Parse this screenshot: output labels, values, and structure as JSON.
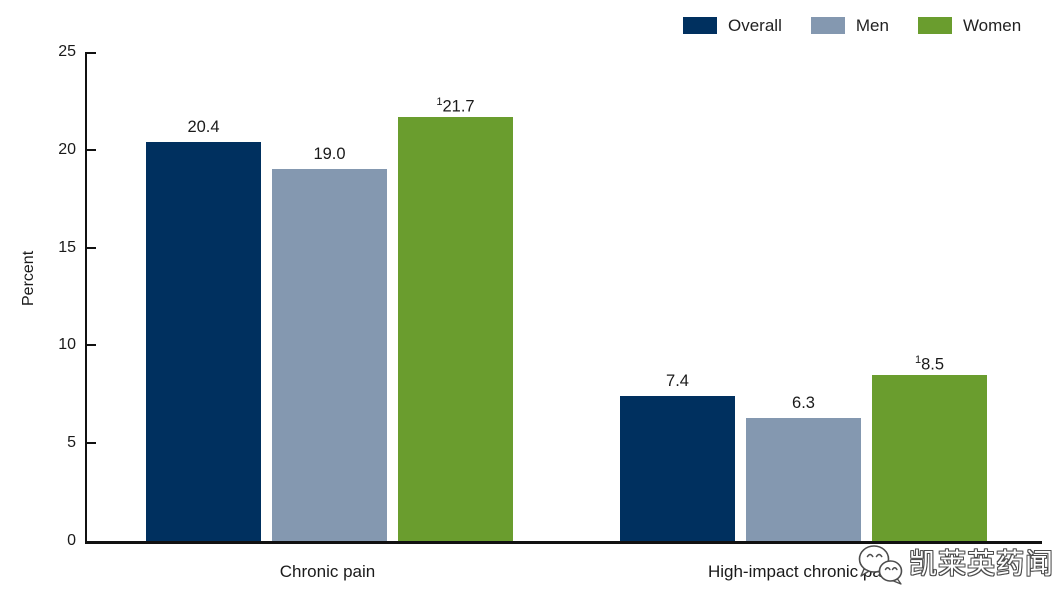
{
  "chart_data": {
    "type": "bar",
    "title": "",
    "ylabel": "Percent",
    "xlabel": "",
    "ylim": [
      0,
      25
    ],
    "yticks": [
      0,
      5,
      10,
      15,
      20,
      25
    ],
    "grid": false,
    "legend_position": "top-right",
    "categories": [
      "Chronic pain",
      "High-impact chronic pain"
    ],
    "series": [
      {
        "name": "Overall",
        "color": "#00305f",
        "values": [
          20.4,
          7.4
        ],
        "labels": [
          "20.4",
          "7.4"
        ],
        "footnotes": [
          "",
          ""
        ]
      },
      {
        "name": "Men",
        "color": "#8498b0",
        "values": [
          19.0,
          6.3
        ],
        "labels": [
          "19.0",
          "6.3"
        ],
        "footnotes": [
          "",
          ""
        ]
      },
      {
        "name": "Women",
        "color": "#6a9d2e",
        "values": [
          21.7,
          8.5
        ],
        "labels": [
          "21.7",
          "8.5"
        ],
        "footnotes": [
          "1",
          "1"
        ]
      }
    ]
  },
  "watermark": {
    "text": "凯莱英药闻",
    "logo_icon": "wechat-logo-icon"
  },
  "colors": {
    "axis": "#111111",
    "text": "#1a1a1a",
    "background": "#ffffff"
  }
}
